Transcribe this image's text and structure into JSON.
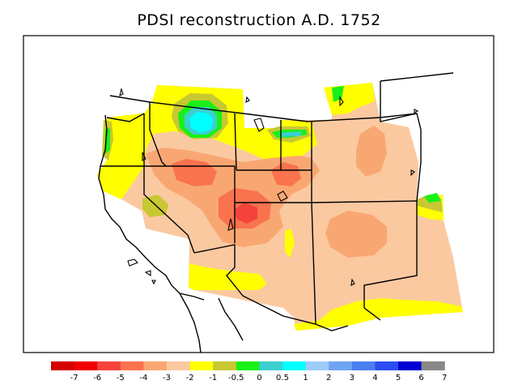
{
  "title": "PDSI reconstruction A.D. 1752",
  "legend": {
    "colors": [
      "#d50000",
      "#f00000",
      "#f4433c",
      "#f9734d",
      "#f9a772",
      "#fbc9a0",
      "#ffff00",
      "#c8c832",
      "#18f018",
      "#3ccfcf",
      "#00ffff",
      "#9ecbf7",
      "#6fa4f4",
      "#4a7ef0",
      "#2c4cf0",
      "#0000d2",
      "#888888"
    ],
    "labels": [
      "-7",
      "-6",
      "-5",
      "-4",
      "-3",
      "-2",
      "-1",
      "-0.5",
      "0",
      "0.5",
      "1",
      "2",
      "3",
      "4",
      "5",
      "6",
      "7"
    ]
  }
}
